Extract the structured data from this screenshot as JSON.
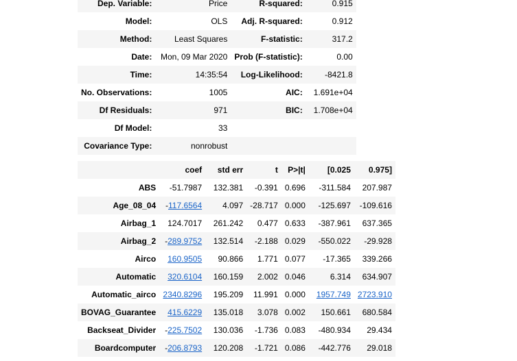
{
  "summary": [
    {
      "k1": "Dep. Variable:",
      "v1": "Price",
      "k2": "R-squared:",
      "v2": "0.915"
    },
    {
      "k1": "Model:",
      "v1": "OLS",
      "k2": "Adj. R-squared:",
      "v2": "0.912"
    },
    {
      "k1": "Method:",
      "v1": "Least Squares",
      "k2": "F-statistic:",
      "v2": "317.2"
    },
    {
      "k1": "Date:",
      "v1": "Mon, 09 Mar 2020",
      "k2": "Prob (F-statistic):",
      "v2": "0.00"
    },
    {
      "k1": "Time:",
      "v1": "14:35:54",
      "k2": "Log-Likelihood:",
      "v2": "-8421.8"
    },
    {
      "k1": "No. Observations:",
      "v1": "1005",
      "k2": "AIC:",
      "v2": "1.691e+04"
    },
    {
      "k1": "Df Residuals:",
      "v1": "971",
      "k2": "BIC:",
      "v2": "1.708e+04"
    },
    {
      "k1": "Df Model:",
      "v1": "33",
      "k2": "",
      "v2": ""
    },
    {
      "k1": "Covariance Type:",
      "v1": "nonrobust",
      "k2": "",
      "v2": ""
    }
  ],
  "coef_table": {
    "headers": [
      "",
      "coef",
      "std err",
      "t",
      "P>|t|",
      "[0.025",
      "0.975]"
    ],
    "rows": [
      {
        "name": "ABS",
        "sign": "",
        "coef": "-51.7987",
        "coef_link": false,
        "se": "132.381",
        "t": "-0.391",
        "p": "0.696",
        "lo": "-311.584",
        "lo_link": false,
        "hi": "207.987",
        "hi_link": false
      },
      {
        "name": "Age_08_04",
        "sign": "-",
        "coef": "117.6564",
        "coef_link": true,
        "se": "4.097",
        "t": "-28.717",
        "p": "0.000",
        "lo": "-125.697",
        "lo_link": false,
        "hi": "-109.616",
        "hi_link": false
      },
      {
        "name": "Airbag_1",
        "sign": "",
        "coef": "124.7017",
        "coef_link": false,
        "se": "261.242",
        "t": "0.477",
        "p": "0.633",
        "lo": "-387.961",
        "lo_link": false,
        "hi": "637.365",
        "hi_link": false
      },
      {
        "name": "Airbag_2",
        "sign": "-",
        "coef": "289.9752",
        "coef_link": true,
        "se": "132.514",
        "t": "-2.188",
        "p": "0.029",
        "lo": "-550.022",
        "lo_link": false,
        "hi": "-29.928",
        "hi_link": false
      },
      {
        "name": "Airco",
        "sign": "",
        "coef": "160.9505",
        "coef_link": true,
        "se": "90.866",
        "t": "1.771",
        "p": "0.077",
        "lo": "-17.365",
        "lo_link": false,
        "hi": "339.266",
        "hi_link": false
      },
      {
        "name": "Automatic",
        "sign": "",
        "coef": "320.6104",
        "coef_link": true,
        "se": "160.159",
        "t": "2.002",
        "p": "0.046",
        "lo": "6.314",
        "lo_link": false,
        "hi": "634.907",
        "hi_link": false
      },
      {
        "name": "Automatic_airco",
        "sign": "",
        "coef": "2340.8296",
        "coef_link": true,
        "se": "195.209",
        "t": "11.991",
        "p": "0.000",
        "lo": "1957.749",
        "lo_link": true,
        "hi": "2723.910",
        "hi_link": true
      },
      {
        "name": "BOVAG_Guarantee",
        "sign": "",
        "coef": "415.6229",
        "coef_link": true,
        "se": "135.018",
        "t": "3.078",
        "p": "0.002",
        "lo": "150.661",
        "lo_link": false,
        "hi": "680.584",
        "hi_link": false
      },
      {
        "name": "Backseat_Divider",
        "sign": "-",
        "coef": "225.7502",
        "coef_link": true,
        "se": "130.036",
        "t": "-1.736",
        "p": "0.083",
        "lo": "-480.934",
        "lo_link": false,
        "hi": "29.434",
        "hi_link": false
      },
      {
        "name": "Boardcomputer",
        "sign": "-",
        "coef": "206.8793",
        "coef_link": true,
        "se": "120.208",
        "t": "-1.721",
        "p": "0.086",
        "lo": "-442.776",
        "lo_link": false,
        "hi": "29.018",
        "hi_link": false
      }
    ]
  },
  "colors": {
    "link": "#1a64c8",
    "stripe": "#f5f5f5"
  }
}
